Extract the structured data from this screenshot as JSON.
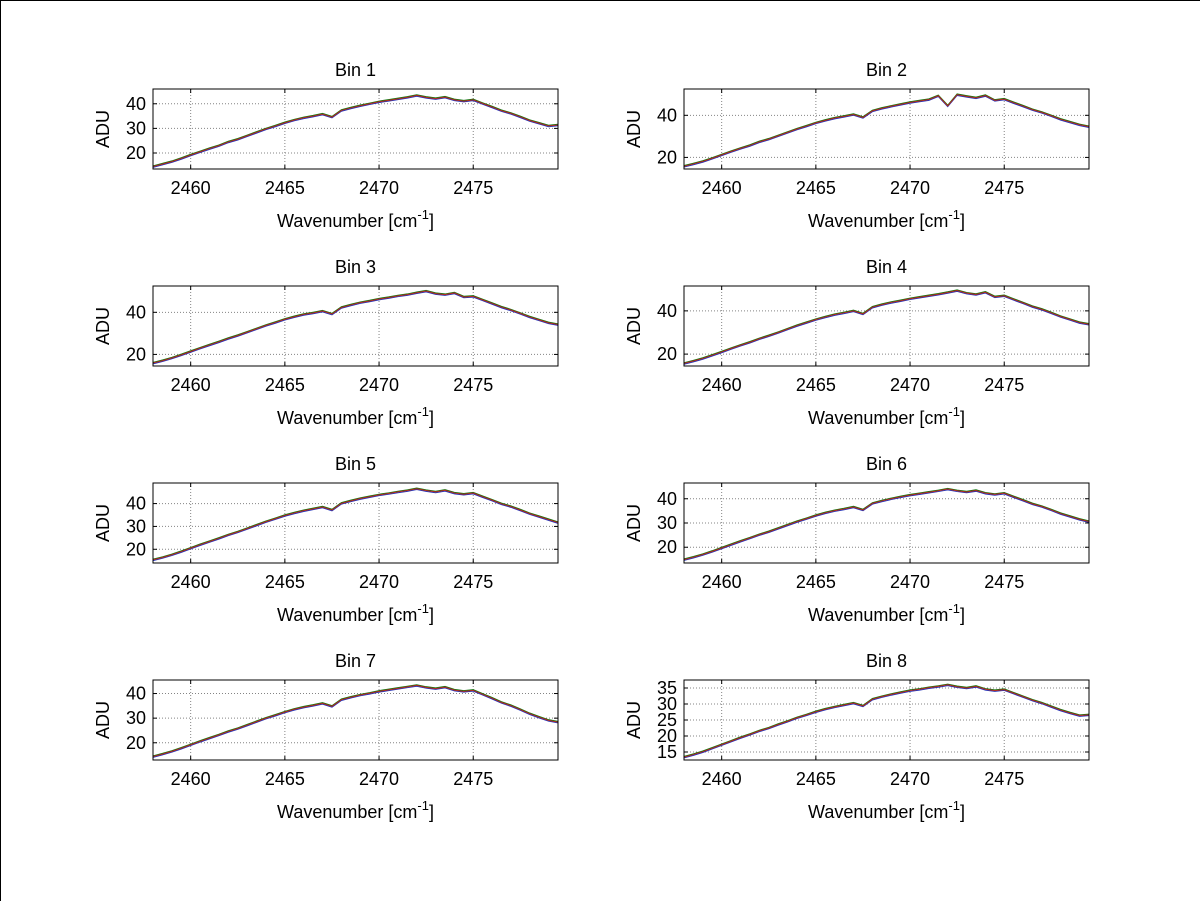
{
  "figure": {
    "background": "#ffffff",
    "frame_color": "#000000"
  },
  "chart_data": {
    "type": "line",
    "layout": "4x2-grid",
    "xlabel": "Wavenumber [cm^-1]",
    "xlabel_parts": [
      "Wavenumber [cm",
      "-1",
      "]"
    ],
    "ylabel": "ADU",
    "xlim": [
      2458,
      2479.5
    ],
    "xticks": [
      2460,
      2465,
      2470,
      2475
    ],
    "x_start": 2458,
    "x_step": 0.5,
    "grid": "dotted",
    "line_color": "#b22a1a",
    "underlay_colors": [
      "#2233bb",
      "#117711"
    ],
    "subplots": [
      {
        "title": "Bin 1",
        "ylim": [
          13.5,
          46
        ],
        "yticks": [
          20,
          30,
          40
        ],
        "y": [
          14.5,
          15.5,
          16.5,
          17.8,
          19.2,
          20.5,
          21.8,
          23.0,
          24.5,
          25.6,
          27.0,
          28.4,
          29.8,
          31.0,
          32.3,
          33.4,
          34.3,
          35.0,
          35.8,
          34.6,
          37.3,
          38.3,
          39.2,
          40.0,
          40.8,
          41.4,
          42.0,
          42.6,
          43.4,
          42.6,
          42.1,
          42.7,
          41.6,
          41.1,
          41.6,
          40.1,
          38.7,
          37.2,
          36.1,
          34.7,
          33.2,
          32.1,
          31.0,
          31.4
        ]
      },
      {
        "title": "Bin 2",
        "ylim": [
          14.5,
          52.5
        ],
        "yticks": [
          20,
          40
        ],
        "y": [
          15.8,
          16.9,
          18.1,
          19.6,
          21.2,
          22.8,
          24.3,
          25.7,
          27.4,
          28.7,
          30.3,
          31.9,
          33.5,
          34.9,
          36.4,
          37.6,
          38.7,
          39.5,
          40.4,
          39.0,
          42.1,
          43.3,
          44.3,
          45.2,
          46.1,
          46.8,
          47.5,
          49.3,
          44.5,
          49.8,
          49.0,
          48.3,
          49.4,
          47.1,
          47.7,
          46.0,
          44.4,
          42.7,
          41.4,
          39.8,
          38.1,
          36.8,
          35.5,
          34.6
        ]
      },
      {
        "title": "Bin 3",
        "ylim": [
          14.5,
          52.5
        ],
        "yticks": [
          20,
          40
        ],
        "y": [
          15.9,
          17.0,
          18.3,
          19.8,
          21.4,
          23.0,
          24.5,
          26.0,
          27.6,
          29.0,
          30.6,
          32.2,
          33.8,
          35.2,
          36.7,
          37.9,
          39.0,
          39.7,
          40.6,
          39.2,
          42.3,
          43.5,
          44.6,
          45.4,
          46.3,
          47.0,
          47.8,
          48.4,
          49.3,
          50.1,
          48.9,
          48.4,
          49.2,
          47.3,
          47.6,
          45.9,
          44.2,
          42.5,
          41.1,
          39.5,
          37.8,
          36.4,
          35.0,
          34.2
        ]
      },
      {
        "title": "Bin 4",
        "ylim": [
          14.5,
          51.5
        ],
        "yticks": [
          20,
          40
        ],
        "y": [
          15.7,
          16.8,
          18.0,
          19.5,
          21.0,
          22.6,
          24.1,
          25.5,
          27.1,
          28.5,
          30.0,
          31.6,
          33.2,
          34.6,
          36.0,
          37.2,
          38.3,
          39.1,
          40.0,
          38.6,
          41.7,
          42.9,
          43.9,
          44.7,
          45.6,
          46.3,
          47.0,
          47.7,
          48.5,
          49.4,
          48.2,
          47.6,
          48.6,
          46.5,
          47.0,
          45.3,
          43.7,
          42.0,
          40.7,
          39.1,
          37.4,
          36.0,
          34.6,
          33.8
        ]
      },
      {
        "title": "Bin 5",
        "ylim": [
          14,
          49
        ],
        "yticks": [
          20,
          30,
          40
        ],
        "y": [
          15.4,
          16.4,
          17.6,
          19.0,
          20.5,
          22.0,
          23.4,
          24.8,
          26.3,
          27.6,
          29.1,
          30.6,
          32.1,
          33.4,
          34.8,
          35.9,
          36.9,
          37.7,
          38.5,
          37.2,
          40.1,
          41.2,
          42.2,
          43.0,
          43.8,
          44.4,
          45.1,
          45.7,
          46.5,
          45.7,
          45.1,
          45.8,
          44.6,
          44.1,
          44.6,
          43.0,
          41.5,
          39.9,
          38.7,
          37.2,
          35.6,
          34.3,
          33.0,
          31.7
        ]
      },
      {
        "title": "Bin 6",
        "ylim": [
          13.5,
          46.5
        ],
        "yticks": [
          20,
          30,
          40
        ],
        "y": [
          14.9,
          15.9,
          17.0,
          18.3,
          19.7,
          21.1,
          22.5,
          23.8,
          25.2,
          26.4,
          27.8,
          29.2,
          30.6,
          31.8,
          33.1,
          34.2,
          35.1,
          35.8,
          36.6,
          35.4,
          38.1,
          39.1,
          40.0,
          40.8,
          41.5,
          42.1,
          42.7,
          43.3,
          44.0,
          43.3,
          42.8,
          43.4,
          42.3,
          41.8,
          42.3,
          40.8,
          39.4,
          37.9,
          36.8,
          35.4,
          33.9,
          32.7,
          31.5,
          30.6
        ]
      },
      {
        "title": "Bin 7",
        "ylim": [
          13,
          45.5
        ],
        "yticks": [
          20,
          30,
          40
        ],
        "y": [
          14.4,
          15.4,
          16.5,
          17.8,
          19.2,
          20.6,
          21.9,
          23.2,
          24.6,
          25.8,
          27.2,
          28.6,
          30.0,
          31.2,
          32.5,
          33.6,
          34.5,
          35.2,
          36.0,
          34.8,
          37.5,
          38.5,
          39.4,
          40.1,
          40.9,
          41.5,
          42.1,
          42.7,
          43.3,
          42.5,
          42.0,
          42.6,
          41.4,
          40.9,
          41.3,
          39.7,
          38.1,
          36.4,
          35.1,
          33.5,
          31.8,
          30.4,
          29.1,
          28.4
        ]
      },
      {
        "title": "Bin 8",
        "ylim": [
          12.5,
          37.5
        ],
        "yticks": [
          15,
          20,
          25,
          30,
          35
        ],
        "y": [
          13.4,
          14.2,
          15.1,
          16.2,
          17.3,
          18.4,
          19.5,
          20.5,
          21.6,
          22.5,
          23.6,
          24.6,
          25.7,
          26.6,
          27.6,
          28.4,
          29.1,
          29.7,
          30.3,
          29.4,
          31.5,
          32.3,
          33.0,
          33.6,
          34.2,
          34.6,
          35.1,
          35.5,
          36.0,
          35.4,
          35.0,
          35.5,
          34.6,
          34.2,
          34.5,
          33.4,
          32.3,
          31.2,
          30.3,
          29.2,
          28.1,
          27.2,
          26.4,
          26.6
        ]
      }
    ]
  }
}
